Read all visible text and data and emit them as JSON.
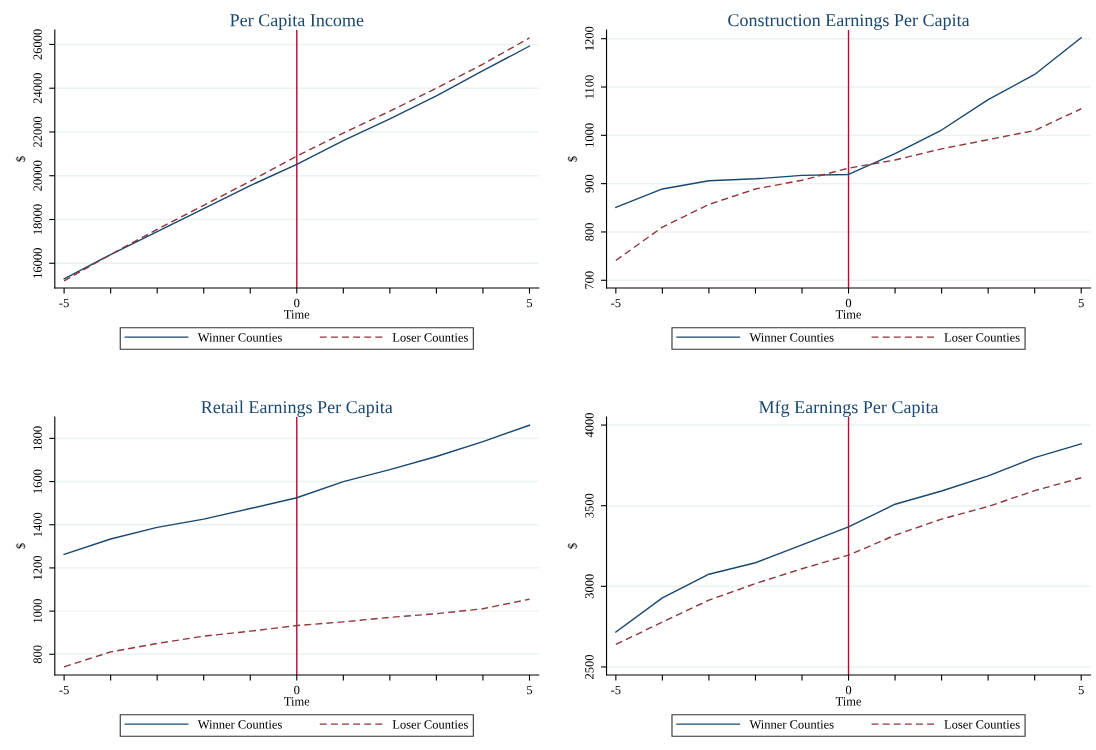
{
  "chart_data": [
    {
      "type": "line",
      "title": "Per Capita Income",
      "xlabel": "Time",
      "ylabel": "$",
      "x": [
        -5,
        -4,
        -3,
        -2,
        -1,
        0,
        1,
        2,
        3,
        4,
        5
      ],
      "series": [
        {
          "name": "Winner Counties",
          "color": "#1a476f",
          "line_style": "solid",
          "values": [
            15290,
            16400,
            17450,
            18500,
            19550,
            20520,
            21600,
            22600,
            23650,
            24800,
            25925
          ]
        },
        {
          "name": "Loser Counties",
          "color": "#90353b",
          "line_style": "dashed",
          "values": [
            15200,
            16400,
            17550,
            18650,
            19750,
            20900,
            21950,
            22950,
            24000,
            25100,
            26300
          ]
        }
      ],
      "xlim": [
        -5.2,
        5.2
      ],
      "xticks": [
        -5,
        {
          "value": -4,
          "label": null
        },
        {
          "value": -3,
          "label": null
        },
        {
          "value": -2,
          "label": null
        },
        {
          "value": -1,
          "label": null
        },
        0,
        {
          "value": 1,
          "label": null
        },
        {
          "value": 2,
          "label": null
        },
        {
          "value": 3,
          "label": null
        },
        {
          "value": 4,
          "label": null
        },
        5
      ],
      "ylim": [
        14870,
        26660
      ],
      "yticks": [
        16000,
        18000,
        20000,
        22000,
        24000,
        26000
      ],
      "ref_lines": [
        {
          "axis": "x",
          "value": 0,
          "color": "#c10534"
        }
      ],
      "grid": "y",
      "legend": "bottom",
      "marker": "none"
    },
    {
      "type": "line",
      "title": "Construction Earnings Per Capita",
      "xlabel": "Time",
      "ylabel": "$",
      "x": [
        -5,
        -4,
        -3,
        -2,
        -1,
        0,
        1,
        2,
        3,
        4,
        5
      ],
      "series": [
        {
          "name": "Winner Counties",
          "color": "#1a476f",
          "line_style": "solid",
          "values": [
            851,
            889,
            906,
            910,
            917,
            919,
            962,
            1011,
            1074,
            1126,
            1202
          ]
        },
        {
          "name": "Loser Counties",
          "color": "#90353b",
          "line_style": "dashed",
          "values": [
            741,
            810,
            857,
            889,
            907,
            932,
            949,
            972,
            991,
            1010,
            1055
          ]
        }
      ],
      "xlim": [
        -5.2,
        5.2
      ],
      "xticks": [
        -5,
        {
          "value": -4,
          "label": null
        },
        {
          "value": -3,
          "label": null
        },
        {
          "value": -2,
          "label": null
        },
        {
          "value": -1,
          "label": null
        },
        0,
        {
          "value": 1,
          "label": null
        },
        {
          "value": 2,
          "label": null
        },
        {
          "value": 3,
          "label": null
        },
        {
          "value": 4,
          "label": null
        },
        5
      ],
      "ylim": [
        684,
        1218
      ],
      "yticks": [
        700,
        800,
        900,
        1000,
        1100,
        1200
      ],
      "ref_lines": [
        {
          "axis": "x",
          "value": 0,
          "color": "#c10534"
        }
      ],
      "grid": "y",
      "legend": "bottom",
      "marker": "none"
    },
    {
      "type": "line",
      "title": "Retail Earnings Per Capita",
      "xlabel": "Time",
      "ylabel": "$",
      "x": [
        -5,
        -4,
        -3,
        -2,
        -1,
        0,
        1,
        2,
        3,
        4,
        5
      ],
      "series": [
        {
          "name": "Winner Counties",
          "color": "#1a476f",
          "line_style": "solid",
          "values": [
            1263,
            1334,
            1388,
            1426,
            1475,
            1525,
            1600,
            1655,
            1716,
            1785,
            1861
          ]
        },
        {
          "name": "Loser Counties",
          "color": "#90353b",
          "line_style": "dashed",
          "values": [
            742,
            811,
            850,
            884,
            907,
            933,
            950,
            971,
            988,
            1011,
            1055
          ]
        }
      ],
      "xlim": [
        -5.2,
        5.2
      ],
      "xticks": [
        -5,
        {
          "value": -4,
          "label": null
        },
        {
          "value": -3,
          "label": null
        },
        {
          "value": -2,
          "label": null
        },
        {
          "value": -1,
          "label": null
        },
        0,
        {
          "value": 1,
          "label": null
        },
        {
          "value": 2,
          "label": null
        },
        {
          "value": 3,
          "label": null
        },
        {
          "value": 4,
          "label": null
        },
        5
      ],
      "ylim": [
        704,
        1899
      ],
      "yticks": [
        800,
        1000,
        1200,
        1400,
        1600,
        1800
      ],
      "ref_lines": [
        {
          "axis": "x",
          "value": 0,
          "color": "#c10534"
        }
      ],
      "grid": "y",
      "legend": "bottom",
      "marker": "none"
    },
    {
      "type": "line",
      "title": "Mfg Earnings Per Capita",
      "xlabel": "Time",
      "ylabel": "$",
      "x": [
        -5,
        -4,
        -3,
        -2,
        -1,
        0,
        1,
        2,
        3,
        4,
        5
      ],
      "series": [
        {
          "name": "Winner Counties",
          "color": "#1a476f",
          "line_style": "solid",
          "values": [
            2716,
            2928,
            3075,
            3146,
            3257,
            3368,
            3509,
            3591,
            3685,
            3798,
            3884
          ]
        },
        {
          "name": "Loser Counties",
          "color": "#90353b",
          "line_style": "dashed",
          "values": [
            2640,
            2778,
            2914,
            3017,
            3109,
            3193,
            3317,
            3417,
            3495,
            3593,
            3673
          ]
        }
      ],
      "xlim": [
        -5.2,
        5.2
      ],
      "xticks": [
        -5,
        {
          "value": -4,
          "label": null
        },
        {
          "value": -3,
          "label": null
        },
        {
          "value": -2,
          "label": null
        },
        {
          "value": -1,
          "label": null
        },
        0,
        {
          "value": 1,
          "label": null
        },
        {
          "value": 2,
          "label": null
        },
        {
          "value": 3,
          "label": null
        },
        {
          "value": 4,
          "label": null
        },
        5
      ],
      "ylim": [
        2450,
        4050
      ],
      "yticks": [
        2500,
        3000,
        3500,
        4000
      ],
      "ref_lines": [
        {
          "axis": "x",
          "value": 0,
          "color": "#c10534"
        }
      ],
      "grid": "y",
      "legend": "bottom",
      "marker": "none"
    }
  ]
}
